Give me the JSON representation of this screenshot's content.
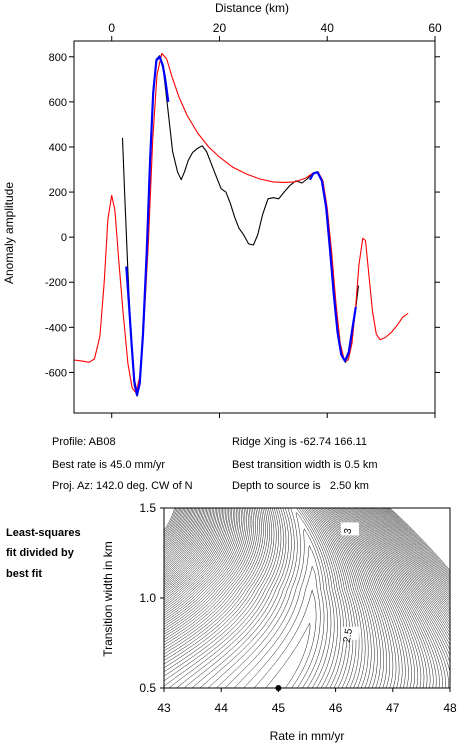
{
  "chart_data": [
    {
      "type": "line",
      "xlabel": "Distance (km)",
      "ylabel": "Anomaly amplitude",
      "xlim": [
        -7,
        60
      ],
      "ylim": [
        -780,
        870
      ],
      "xticks": [
        0,
        20,
        40,
        60
      ],
      "yticks": [
        800,
        600,
        400,
        200,
        0,
        -200,
        -400,
        -600
      ],
      "colors": {
        "observed": "#000000",
        "modeled": "#ff0000",
        "fit_window": "#0000ff"
      },
      "series": [
        {
          "role": "observed",
          "points": [
            [
              2.0,
              440
            ],
            [
              2.4,
              200
            ],
            [
              3.0,
              -150
            ],
            [
              3.6,
              -450
            ],
            [
              4.2,
              -660
            ],
            [
              4.7,
              -705
            ],
            [
              5.2,
              -640
            ],
            [
              5.8,
              -420
            ],
            [
              6.5,
              -60
            ],
            [
              7.1,
              350
            ],
            [
              7.7,
              650
            ],
            [
              8.3,
              790
            ],
            [
              8.9,
              805
            ],
            [
              9.6,
              740
            ],
            [
              10.4,
              570
            ],
            [
              11.3,
              380
            ],
            [
              12.2,
              290
            ],
            [
              12.9,
              255
            ],
            [
              13.5,
              290
            ],
            [
              14.2,
              340
            ],
            [
              15.0,
              375
            ],
            [
              16.0,
              395
            ],
            [
              16.8,
              405
            ],
            [
              17.6,
              380
            ],
            [
              18.4,
              330
            ],
            [
              19.4,
              270
            ],
            [
              20.3,
              215
            ],
            [
              21.2,
              200
            ],
            [
              22.0,
              150
            ],
            [
              22.8,
              90
            ],
            [
              23.6,
              40
            ],
            [
              24.5,
              10
            ],
            [
              25.4,
              -30
            ],
            [
              26.3,
              -35
            ],
            [
              27.1,
              10
            ],
            [
              28.0,
              100
            ],
            [
              29.0,
              170
            ],
            [
              30.0,
              175
            ],
            [
              31.0,
              170
            ],
            [
              32.0,
              200
            ],
            [
              33.1,
              230
            ],
            [
              34.2,
              250
            ],
            [
              35.3,
              240
            ],
            [
              36.4,
              260
            ],
            [
              37.4,
              285
            ],
            [
              38.3,
              285
            ],
            [
              39.1,
              240
            ],
            [
              39.9,
              120
            ],
            [
              40.6,
              -60
            ],
            [
              41.3,
              -260
            ],
            [
              42.0,
              -430
            ],
            [
              42.7,
              -530
            ],
            [
              43.4,
              -555
            ],
            [
              44.2,
              -500
            ],
            [
              45.0,
              -370
            ],
            [
              45.8,
              -215
            ]
          ]
        },
        {
          "role": "modeled",
          "points": [
            [
              -7.0,
              -545
            ],
            [
              -5.5,
              -550
            ],
            [
              -4.2,
              -555
            ],
            [
              -3.2,
              -540
            ],
            [
              -2.2,
              -440
            ],
            [
              -1.4,
              -200
            ],
            [
              -0.7,
              80
            ],
            [
              0.0,
              185
            ],
            [
              0.6,
              120
            ],
            [
              1.3,
              -100
            ],
            [
              2.1,
              -330
            ],
            [
              3.0,
              -560
            ],
            [
              3.8,
              -670
            ],
            [
              4.5,
              -690
            ],
            [
              5.2,
              -620
            ],
            [
              6.0,
              -380
            ],
            [
              6.8,
              -20
            ],
            [
              7.6,
              430
            ],
            [
              8.4,
              720
            ],
            [
              9.3,
              815
            ],
            [
              10.2,
              790
            ],
            [
              11.2,
              710
            ],
            [
              12.5,
              620
            ],
            [
              14.0,
              540
            ],
            [
              16.0,
              460
            ],
            [
              18.0,
              400
            ],
            [
              20.0,
              355
            ],
            [
              22.5,
              310
            ],
            [
              25.0,
              280
            ],
            [
              27.5,
              258
            ],
            [
              30.0,
              245
            ],
            [
              32.0,
              243
            ],
            [
              34.0,
              245
            ],
            [
              36.0,
              262
            ],
            [
              37.4,
              285
            ],
            [
              38.3,
              290
            ],
            [
              39.2,
              250
            ],
            [
              40.0,
              130
            ],
            [
              40.8,
              -60
            ],
            [
              41.6,
              -290
            ],
            [
              42.4,
              -470
            ],
            [
              43.2,
              -550
            ],
            [
              43.9,
              -545
            ],
            [
              44.6,
              -470
            ],
            [
              45.3,
              -300
            ],
            [
              45.9,
              -120
            ],
            [
              46.6,
              -5
            ],
            [
              47.1,
              -15
            ],
            [
              47.7,
              -160
            ],
            [
              48.4,
              -330
            ],
            [
              49.1,
              -430
            ],
            [
              49.8,
              -455
            ],
            [
              50.8,
              -445
            ],
            [
              52.0,
              -420
            ],
            [
              53.0,
              -390
            ],
            [
              54.0,
              -355
            ],
            [
              55.0,
              -338
            ]
          ]
        },
        {
          "role": "fit_window",
          "points": [
            [
              2.7,
              -130
            ],
            [
              3.2,
              -300
            ],
            [
              3.7,
              -480
            ],
            [
              4.2,
              -640
            ],
            [
              4.7,
              -700
            ],
            [
              5.2,
              -650
            ],
            [
              5.8,
              -430
            ],
            [
              6.5,
              -70
            ],
            [
              7.1,
              330
            ],
            [
              7.7,
              640
            ],
            [
              8.3,
              785
            ],
            [
              8.9,
              800
            ],
            [
              9.5,
              760
            ],
            [
              10.0,
              690
            ],
            [
              10.5,
              600
            ]
          ]
        },
        {
          "role": "fit_window",
          "points": [
            [
              36.8,
              255
            ],
            [
              37.4,
              282
            ],
            [
              38.2,
              288
            ],
            [
              39.0,
              250
            ],
            [
              39.8,
              130
            ],
            [
              40.5,
              -50
            ],
            [
              41.2,
              -250
            ],
            [
              41.9,
              -420
            ],
            [
              42.6,
              -520
            ],
            [
              43.3,
              -550
            ],
            [
              44.0,
              -510
            ],
            [
              44.7,
              -400
            ],
            [
              45.3,
              -310
            ]
          ]
        }
      ]
    },
    {
      "type": "contour",
      "xlabel": "Rate in mm/yr",
      "ylabel": "Transition width in km",
      "xlim": [
        43,
        48
      ],
      "ylim": [
        0.5,
        1.5
      ],
      "xticks": [
        "43",
        "44",
        "45",
        "46",
        "47",
        "48"
      ],
      "yticks": [
        "0.5",
        "1.0",
        "1.5"
      ],
      "best_fit": {
        "rate": 45.0,
        "width": 0.5
      },
      "contour_labels": [
        {
          "text": "3",
          "rate": 46.25,
          "width": 1.37
        },
        {
          "text": "2.5",
          "rate": 46.25,
          "width": 0.79
        }
      ]
    }
  ],
  "info": {
    "profile": "Profile: AB08",
    "best_rate": "Best rate is 45.0 mm/yr",
    "proj_az": "Proj. Az: 142.0 deg. CW of N",
    "ridge_xing": "Ridge Xing is -62.74 166.11",
    "best_width": "Best transition width is 0.5 km",
    "depth": "Depth to source is   2.50 km"
  },
  "side_note": [
    "Least-squares",
    "fit divided by",
    "best fit"
  ]
}
